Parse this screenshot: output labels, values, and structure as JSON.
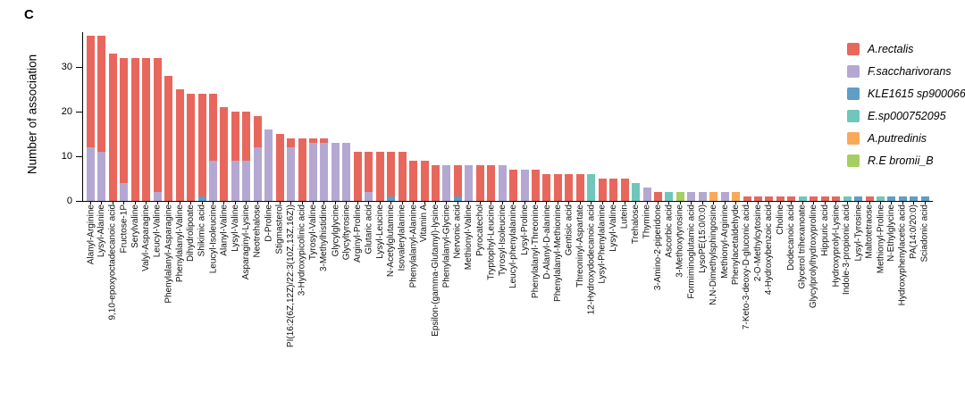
{
  "panel_label": "C",
  "chart_data": {
    "type": "bar",
    "stacked": true,
    "title": "",
    "xlabel": "",
    "ylabel": "Number of association",
    "ylim": [
      0,
      38
    ],
    "yticks": [
      0,
      10,
      20,
      30
    ],
    "grid": false,
    "legend_position": "top-right",
    "categories": [
      "Alanyl-Arginine",
      "Lysyl-Alanine",
      "9,10-epoxyoctadecanoic acid",
      "Fructose-1P",
      "Serylvaline",
      "Valyl-Asparagine",
      "Leucyl-Valine",
      "Phenylalanyl-Asparagine",
      "Phenylalanyl-Valine",
      "Dihydrolipoate",
      "Shikimic acid",
      "Leucyl-Isoleucine",
      "Alanyl-Valine",
      "Lysyl-Valine",
      "Asparaginyl-Lysine",
      "Neotrehalose",
      "D-Proline",
      "Stigmasterol",
      "PI(16:2(6Z,12Z)/22:3(10Z,13Z,16Z))",
      "3-Hydroxypicolinic acid",
      "Tyrosyl-Valine",
      "3-Methylhistidine",
      "Glycylglycine",
      "Glycyltyrosine",
      "Arginyl-Proline",
      "Glutaric acid",
      "Lysyl-Leucine",
      "N-Acetylglutamine",
      "Isovalerylalanine",
      "Phenylalanyl-Alanine",
      "Vitamin A",
      "Epsilon-(gamma-Glutamyl)-lysine",
      "Phenylalanyl-Glycine",
      "Nervonic acid",
      "Methionyl-Valine",
      "Pyrocatechol",
      "Tryptophyl-Leucine",
      "Tyrosyl-Isoleucine",
      "Leucyl-phenylalanine",
      "Lysyl-Proline",
      "Phenylalanyl-Threonine",
      "D-Alanyl-D-alanine",
      "Phenylalanyl-Methionine",
      "Gentisic acid",
      "Threoninyl-Aspartate",
      "12-Hydroxydodecanoic acid",
      "Lysyl-Phenylalanine",
      "Lysyl-Valine",
      "Lutein",
      "Trehalose",
      "Thymine",
      "3-Amino-2-piperidone",
      "Ascorbic acid",
      "3-Methoxytyrosine",
      "Formiminoglutamic acid",
      "LysoPE(15:0/0:0)",
      "N,N-Dimethylsphingosine",
      "Methionyl-Arginine",
      "Phenylacetaldehyde",
      "7-Keto-3-deoxy-D-gluconic acid",
      "2-O-Methylcytosine",
      "4-Hydroxybenzoic acid",
      "Choline",
      "Dodecanoic acid",
      "Glycerol trihexanoate",
      "Glycylprolylhydroxyproline",
      "Hippuric acid",
      "Hydroxyprolyl-Lysine",
      "Indole-3-propionic acid",
      "Lysyl-Tyrosine",
      "Maltotetraose",
      "Methionyl-Proline",
      "N-Ethylglycine",
      "Hydroxyphenylacetic acid",
      "PA(14:0/20:0)",
      "Sciadonic acid"
    ],
    "series": [
      {
        "name": "A.rectalis",
        "color": "#E8675D",
        "values": [
          25,
          26,
          33,
          28,
          32,
          32,
          30,
          28,
          25,
          24,
          23,
          15,
          21,
          11,
          11,
          7,
          0,
          15,
          2,
          14,
          1,
          1,
          0,
          0,
          11,
          9,
          11,
          10,
          11,
          9,
          9,
          8,
          0,
          7,
          0,
          8,
          8,
          0,
          7,
          0,
          7,
          6,
          6,
          6,
          6,
          0,
          5,
          5,
          5,
          0,
          0,
          2,
          0,
          0,
          0,
          0,
          0,
          0,
          0,
          1,
          1,
          1,
          1,
          1,
          0,
          1,
          1,
          1,
          0,
          0,
          1,
          0,
          0,
          0,
          0,
          0
        ]
      },
      {
        "name": "F.saccharivorans",
        "color": "#B4A8D3",
        "values": [
          12,
          11,
          0,
          4,
          0,
          0,
          2,
          0,
          0,
          0,
          0,
          9,
          0,
          9,
          9,
          12,
          16,
          0,
          12,
          0,
          13,
          13,
          13,
          13,
          0,
          2,
          0,
          0,
          0,
          0,
          0,
          0,
          8,
          0,
          8,
          0,
          0,
          8,
          0,
          7,
          0,
          0,
          0,
          0,
          0,
          0,
          0,
          0,
          0,
          0,
          3,
          0,
          0,
          0,
          2,
          2,
          0,
          2,
          0,
          0,
          0,
          0,
          0,
          0,
          0,
          0,
          0,
          0,
          0,
          0,
          0,
          0,
          0,
          0,
          0,
          0
        ]
      },
      {
        "name": "KLE1615 sp900066985",
        "color": "#5F9EC7",
        "values": [
          0,
          0,
          0,
          0,
          0,
          0,
          0,
          0,
          0,
          0,
          1,
          0,
          0,
          0,
          0,
          0,
          0,
          0,
          0,
          0,
          0,
          0,
          0,
          0,
          0,
          0,
          0,
          1,
          0,
          0,
          0,
          0,
          0,
          1,
          0,
          0,
          0,
          0,
          0,
          0,
          0,
          0,
          0,
          0,
          0,
          0,
          0,
          0,
          0,
          0,
          0,
          0,
          0,
          0,
          0,
          0,
          0,
          0,
          0,
          0,
          0,
          0,
          0,
          0,
          0,
          0,
          0,
          0,
          0,
          1,
          0,
          0,
          1,
          1,
          1,
          1
        ]
      },
      {
        "name": "E.sp000752095",
        "color": "#70C6BB",
        "values": [
          0,
          0,
          0,
          0,
          0,
          0,
          0,
          0,
          0,
          0,
          0,
          0,
          0,
          0,
          0,
          0,
          0,
          0,
          0,
          0,
          0,
          0,
          0,
          0,
          0,
          0,
          0,
          0,
          0,
          0,
          0,
          0,
          0,
          0,
          0,
          0,
          0,
          0,
          0,
          0,
          0,
          0,
          0,
          0,
          0,
          6,
          0,
          0,
          0,
          4,
          0,
          0,
          2,
          0,
          0,
          0,
          0,
          0,
          0,
          0,
          0,
          0,
          0,
          0,
          1,
          0,
          0,
          0,
          1,
          0,
          0,
          1,
          0,
          0,
          0,
          0
        ]
      },
      {
        "name": "A.putredinis",
        "color": "#F9A95A",
        "values": [
          0,
          0,
          0,
          0,
          0,
          0,
          0,
          0,
          0,
          0,
          0,
          0,
          0,
          0,
          0,
          0,
          0,
          0,
          0,
          0,
          0,
          0,
          0,
          0,
          0,
          0,
          0,
          0,
          0,
          0,
          0,
          0,
          0,
          0,
          0,
          0,
          0,
          0,
          0,
          0,
          0,
          0,
          0,
          0,
          0,
          0,
          0,
          0,
          0,
          0,
          0,
          0,
          0,
          0,
          0,
          0,
          2,
          0,
          2,
          0,
          0,
          0,
          0,
          0,
          0,
          0,
          0,
          0,
          0,
          0,
          0,
          0,
          0,
          0,
          0,
          0
        ]
      },
      {
        "name": "R.E bromii_B",
        "color": "#A6CE61",
        "values": [
          0,
          0,
          0,
          0,
          0,
          0,
          0,
          0,
          0,
          0,
          0,
          0,
          0,
          0,
          0,
          0,
          0,
          0,
          0,
          0,
          0,
          0,
          0,
          0,
          0,
          0,
          0,
          0,
          0,
          0,
          0,
          0,
          0,
          0,
          0,
          0,
          0,
          0,
          0,
          0,
          0,
          0,
          0,
          0,
          0,
          0,
          0,
          0,
          0,
          0,
          0,
          0,
          0,
          2,
          0,
          0,
          0,
          0,
          0,
          0,
          0,
          0,
          0,
          0,
          0,
          0,
          0,
          0,
          0,
          0,
          0,
          0,
          0,
          0,
          0,
          0
        ]
      }
    ]
  }
}
